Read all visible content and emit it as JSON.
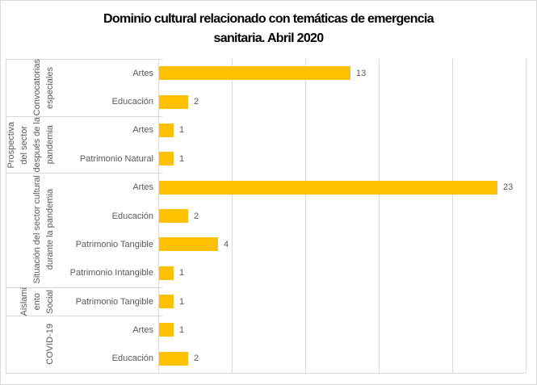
{
  "header": {
    "title_line1": "Dominio cultural relacionado con temáticas de emergencia",
    "title_line2": "sanitaria. Abril 2020"
  },
  "chart_data": {
    "type": "bar",
    "orientation": "horizontal",
    "title": "Dominio cultural relacionado con temáticas de emergencia sanitaria. Abril 2020",
    "legend": "none",
    "value_axis": {
      "min": 0,
      "max": 25,
      "gridline_step": 5,
      "tick_labels_visible": false
    },
    "bar_color": "#FFC000",
    "text_color": "#595959",
    "gridline_color": "#D9D9D9",
    "groups": [
      {
        "label": "Convocatorias especiales",
        "label_lines": [
          "Convocatorias",
          "especiales"
        ],
        "items": [
          {
            "category": "Artes",
            "value": 13
          },
          {
            "category": "Educación",
            "value": 2
          }
        ]
      },
      {
        "label": "Prospectiva del sector después de la pandemia",
        "label_lines": [
          "Prospectiva",
          "del sector",
          "después de la",
          "pandemia"
        ],
        "items": [
          {
            "category": "Artes",
            "value": 1
          },
          {
            "category": "Patrimonio Natural",
            "value": 1
          }
        ]
      },
      {
        "label": "Situación del sector cultural durante la pandemia",
        "label_lines": [
          "Situación del sector cultural",
          "durante la pandemia"
        ],
        "items": [
          {
            "category": "Artes",
            "value": 23
          },
          {
            "category": "Educación",
            "value": 2
          },
          {
            "category": "Patrimonio Tangible",
            "value": 4
          },
          {
            "category": "Patrimonio Intangible",
            "value": 1
          }
        ]
      },
      {
        "label": "Aislamiento Social",
        "label_lines": [
          "Aislami",
          "ento",
          "Social"
        ],
        "items": [
          {
            "category": "Patrimonio Tangible",
            "value": 1
          }
        ]
      },
      {
        "label": "COVID-19",
        "label_lines": [
          "COVID-19"
        ],
        "items": [
          {
            "category": "Artes",
            "value": 1
          },
          {
            "category": "Educación",
            "value": 2
          }
        ]
      }
    ]
  }
}
